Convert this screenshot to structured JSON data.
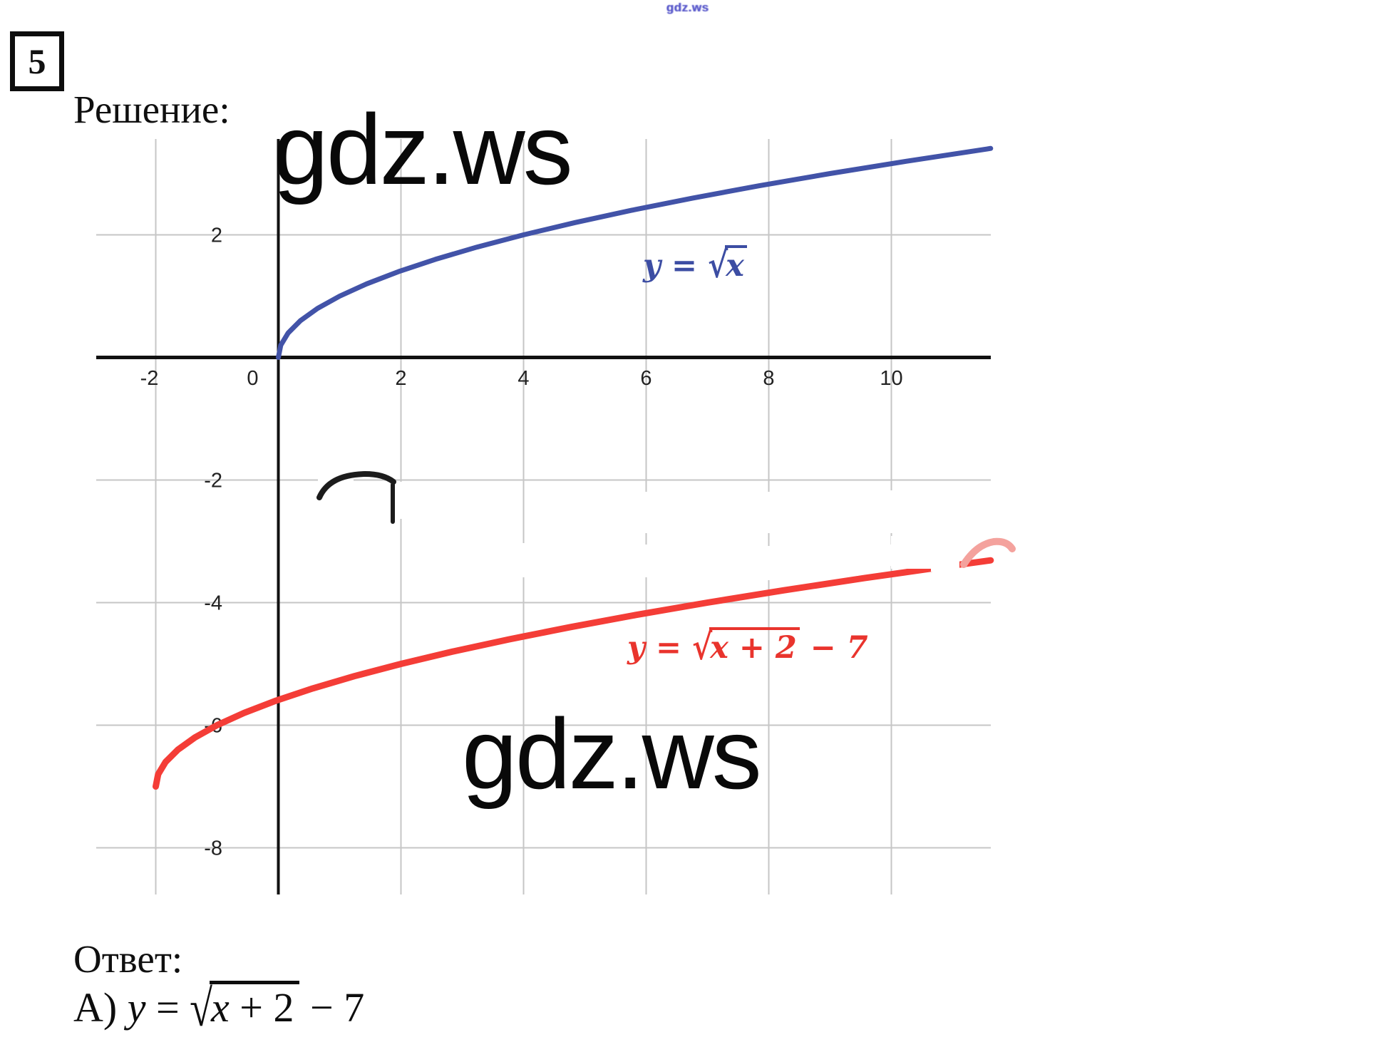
{
  "watermarks": {
    "small_top": "gdz.ws",
    "large_top": "gdz.ws",
    "large_bottom": "gdz.ws"
  },
  "problem_number": "5",
  "solution_label": "Решение:",
  "answer_label": "Ответ:",
  "answer_formula": {
    "prefix": "А)",
    "lhs": "y",
    "eq": "=",
    "rad_var": "x",
    "rad_rest": "+ 2",
    "tail": "− 7"
  },
  "labels": {
    "blue": {
      "lhs": "y",
      "eq": "=",
      "rad_var": "x",
      "rad_rest": "",
      "tail": ""
    },
    "red": {
      "lhs": "y",
      "eq": "=",
      "rad_var": "x",
      "rad_rest": "+ 2",
      "tail": "− 7"
    }
  },
  "chart_data": {
    "type": "line",
    "title": "",
    "xlabel": "",
    "ylabel": "",
    "xlim": [
      -2.97,
      11.62
    ],
    "ylim": [
      -8.76,
      3.57
    ],
    "grid": true,
    "x_ticks": [
      -2,
      0,
      2,
      4,
      6,
      8,
      10
    ],
    "y_ticks": [
      2,
      -2,
      -4,
      -6,
      -8
    ],
    "series": [
      {
        "name": "y = √x",
        "color": "#4253a8",
        "width": 7,
        "points": [
          [
            0,
            0
          ],
          [
            0.04,
            0.2
          ],
          [
            0.16,
            0.4
          ],
          [
            0.36,
            0.6
          ],
          [
            0.64,
            0.8
          ],
          [
            1,
            1
          ],
          [
            1.44,
            1.2
          ],
          [
            1.96,
            1.4
          ],
          [
            2.56,
            1.6
          ],
          [
            3.24,
            1.8
          ],
          [
            4,
            2
          ],
          [
            4.84,
            2.2
          ],
          [
            5.76,
            2.4
          ],
          [
            6.76,
            2.6
          ],
          [
            7.84,
            2.8
          ],
          [
            9,
            3
          ],
          [
            10.24,
            3.2
          ],
          [
            11.56,
            3.4
          ],
          [
            11.62,
            3.41
          ]
        ]
      },
      {
        "name": "y = √(x+2) − 7",
        "color": "#f43d37",
        "width": 9,
        "points": [
          [
            -2,
            -7
          ],
          [
            -1.96,
            -6.8
          ],
          [
            -1.84,
            -6.6
          ],
          [
            -1.64,
            -6.4
          ],
          [
            -1.36,
            -6.2
          ],
          [
            -1,
            -6
          ],
          [
            -0.56,
            -5.8
          ],
          [
            -0.04,
            -5.6
          ],
          [
            0.56,
            -5.4
          ],
          [
            1.24,
            -5.2
          ],
          [
            2,
            -5
          ],
          [
            2.84,
            -4.8
          ],
          [
            3.76,
            -4.6
          ],
          [
            4.76,
            -4.4
          ],
          [
            5.84,
            -4.2
          ],
          [
            7,
            -4
          ],
          [
            8.24,
            -3.8
          ],
          [
            9.56,
            -3.6
          ],
          [
            10.96,
            -3.4
          ],
          [
            11.62,
            -3.31
          ]
        ]
      }
    ]
  }
}
